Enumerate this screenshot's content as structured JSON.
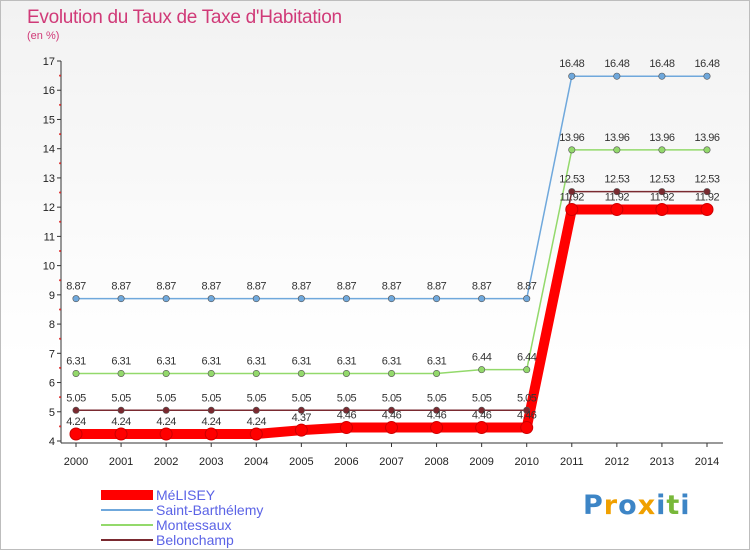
{
  "header": {
    "title": "Evolution du Taux de Taxe d'Habitation",
    "unit": "(en %)"
  },
  "chart_data": {
    "type": "line",
    "title": "Evolution du Taux de Taxe d'Habitation",
    "ylabel": "(en %)",
    "xlabel": "",
    "x": [
      "2000",
      "2001",
      "2002",
      "2003",
      "2004",
      "2005",
      "2006",
      "2007",
      "2008",
      "2009",
      "2010",
      "2011",
      "2012",
      "2013",
      "2014"
    ],
    "ylim": [
      4,
      17
    ],
    "yticks": [
      "4",
      "5",
      "6",
      "7",
      "8",
      "9",
      "10",
      "11",
      "12",
      "13",
      "14",
      "15",
      "16",
      "17"
    ],
    "grid": false,
    "legend_position": "bottom-left",
    "series": [
      {
        "name": "MéLISEY",
        "color": "#ff0000",
        "values": [
          4.24,
          4.24,
          4.24,
          4.24,
          4.24,
          4.37,
          4.46,
          4.46,
          4.46,
          4.46,
          4.46,
          11.92,
          11.92,
          11.92,
          11.92
        ],
        "labels": [
          "4.24",
          "4.24",
          "4.24",
          "4.24",
          "4.24",
          "4.37",
          "4.46",
          "4.46",
          "4.46",
          "4.46",
          "4.46",
          "11.92",
          "11.92",
          "11.92",
          "11.92"
        ]
      },
      {
        "name": "Saint-Barthélemy",
        "color": "#6fa8dc",
        "values": [
          8.87,
          8.87,
          8.87,
          8.87,
          8.87,
          8.87,
          8.87,
          8.87,
          8.87,
          8.87,
          8.87,
          16.48,
          16.48,
          16.48,
          16.48
        ],
        "labels": [
          "8.87",
          "8.87",
          "8.87",
          "8.87",
          "8.87",
          "8.87",
          "8.87",
          "8.87",
          "8.87",
          "8.87",
          "8.87",
          "16.48",
          "16.48",
          "16.48",
          "16.48"
        ]
      },
      {
        "name": "Montessaux",
        "color": "#93d96b",
        "values": [
          6.31,
          6.31,
          6.31,
          6.31,
          6.31,
          6.31,
          6.31,
          6.31,
          6.31,
          6.44,
          6.44,
          13.96,
          13.96,
          13.96,
          13.96
        ],
        "labels": [
          "6.31",
          "6.31",
          "6.31",
          "6.31",
          "6.31",
          "6.31",
          "6.31",
          "6.31",
          "6.31",
          "6.44",
          "6.44",
          "13.96",
          "13.96",
          "13.96",
          "13.96"
        ]
      },
      {
        "name": "Belonchamp",
        "color": "#7a2a30",
        "values": [
          5.05,
          5.05,
          5.05,
          5.05,
          5.05,
          5.05,
          5.05,
          5.05,
          5.05,
          5.05,
          5.05,
          12.53,
          12.53,
          12.53,
          12.53
        ],
        "labels": [
          "5.05",
          "5.05",
          "5.05",
          "5.05",
          "5.05",
          "5.05",
          "5.05",
          "5.05",
          "5.05",
          "5.05",
          "5.05",
          "12.53",
          "12.53",
          "12.53",
          "12.53"
        ]
      }
    ]
  },
  "logo": {
    "letters": [
      "P",
      "r",
      "o",
      "x",
      "i",
      "t",
      "i"
    ],
    "colors": [
      "#3d85c6",
      "#f0a000",
      "#3d85c6",
      "#f0a000",
      "#3d85c6",
      "#78b83a",
      "#3d85c6"
    ]
  }
}
